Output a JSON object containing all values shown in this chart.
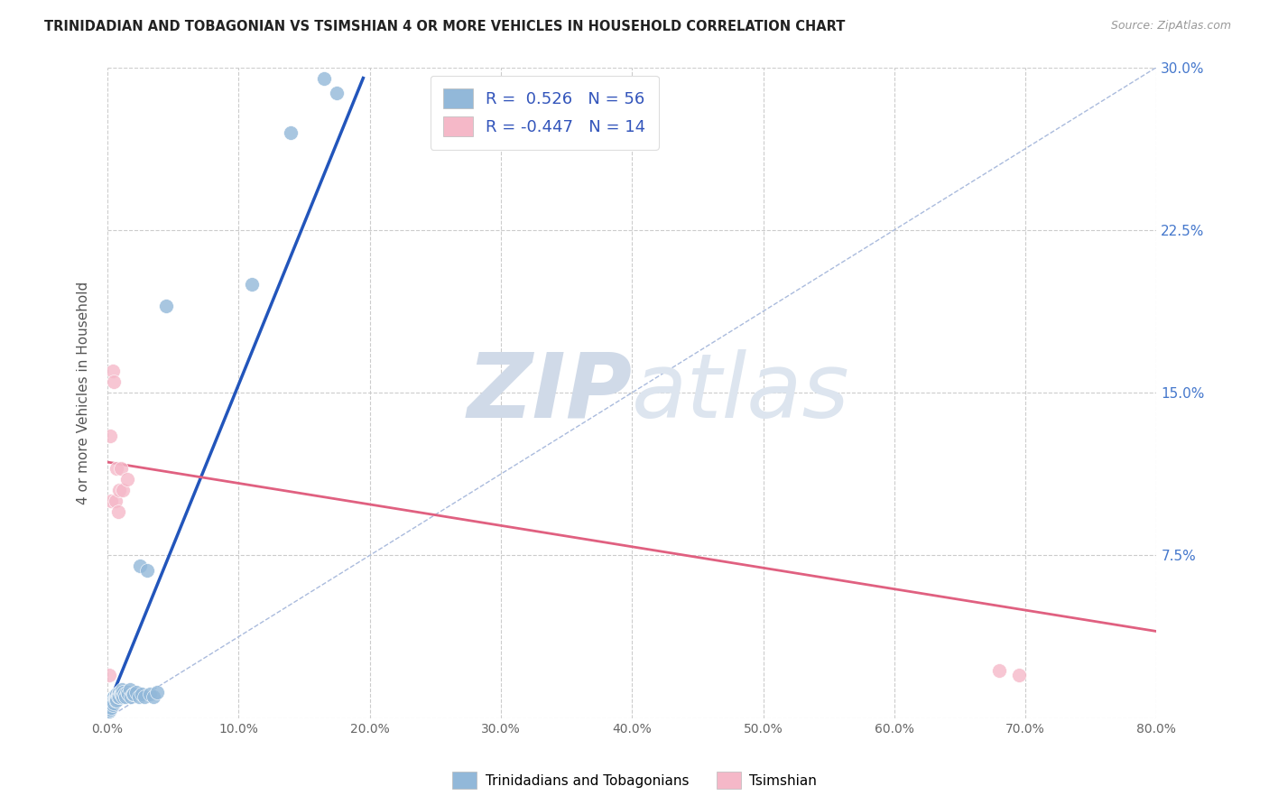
{
  "title": "TRINIDADIAN AND TOBAGONIAN VS TSIMSHIAN 4 OR MORE VEHICLES IN HOUSEHOLD CORRELATION CHART",
  "source": "Source: ZipAtlas.com",
  "ylabel": "4 or more Vehicles in Household",
  "xlim": [
    0.0,
    0.8
  ],
  "ylim": [
    0.0,
    0.3
  ],
  "xticks": [
    0.0,
    0.1,
    0.2,
    0.3,
    0.4,
    0.5,
    0.6,
    0.7,
    0.8
  ],
  "yticks": [
    0.0,
    0.075,
    0.15,
    0.225,
    0.3
  ],
  "xticklabels": [
    "0.0%",
    "10.0%",
    "20.0%",
    "30.0%",
    "40.0%",
    "50.0%",
    "60.0%",
    "70.0%",
    "80.0%"
  ],
  "yticklabels_right": [
    "",
    "7.5%",
    "15.0%",
    "22.5%",
    "30.0%"
  ],
  "blue_R": 0.526,
  "blue_N": 56,
  "pink_R": -0.447,
  "pink_N": 14,
  "blue_color": "#92b8d9",
  "pink_color": "#f5b8c8",
  "blue_line_color": "#2255bb",
  "pink_line_color": "#e06080",
  "watermark_zip": "ZIP",
  "watermark_atlas": "atlas",
  "legend_label_blue": "Trinidadians and Tobagonians",
  "legend_label_pink": "Tsimshian",
  "blue_scatter_x": [
    0.001,
    0.001,
    0.001,
    0.002,
    0.002,
    0.002,
    0.002,
    0.003,
    0.003,
    0.003,
    0.003,
    0.004,
    0.004,
    0.004,
    0.004,
    0.005,
    0.005,
    0.005,
    0.006,
    0.006,
    0.006,
    0.007,
    0.007,
    0.007,
    0.008,
    0.008,
    0.009,
    0.009,
    0.01,
    0.01,
    0.011,
    0.011,
    0.012,
    0.012,
    0.013,
    0.014,
    0.015,
    0.016,
    0.017,
    0.018,
    0.019,
    0.02,
    0.022,
    0.024,
    0.025,
    0.026,
    0.028,
    0.03,
    0.032,
    0.035,
    0.038,
    0.045,
    0.11,
    0.14,
    0.165,
    0.175
  ],
  "blue_scatter_y": [
    0.005,
    0.004,
    0.003,
    0.007,
    0.006,
    0.005,
    0.004,
    0.008,
    0.007,
    0.006,
    0.005,
    0.009,
    0.008,
    0.007,
    0.006,
    0.01,
    0.008,
    0.007,
    0.01,
    0.009,
    0.008,
    0.011,
    0.009,
    0.008,
    0.011,
    0.01,
    0.012,
    0.01,
    0.012,
    0.011,
    0.013,
    0.011,
    0.012,
    0.01,
    0.011,
    0.01,
    0.012,
    0.011,
    0.013,
    0.01,
    0.011,
    0.011,
    0.012,
    0.01,
    0.07,
    0.011,
    0.01,
    0.068,
    0.011,
    0.01,
    0.012,
    0.19,
    0.2,
    0.27,
    0.295,
    0.288
  ],
  "pink_scatter_x": [
    0.001,
    0.002,
    0.003,
    0.004,
    0.005,
    0.006,
    0.007,
    0.008,
    0.009,
    0.01,
    0.012,
    0.015,
    0.68,
    0.695
  ],
  "pink_scatter_y": [
    0.02,
    0.13,
    0.1,
    0.16,
    0.155,
    0.1,
    0.115,
    0.095,
    0.105,
    0.115,
    0.105,
    0.11,
    0.022,
    0.02
  ],
  "blue_trend_x0": 0.0,
  "blue_trend_y0": 0.005,
  "blue_trend_x1": 0.195,
  "blue_trend_y1": 0.295,
  "pink_trend_x0": 0.0,
  "pink_trend_y0": 0.118,
  "pink_trend_x1": 0.8,
  "pink_trend_y1": 0.04,
  "ref_line_x0": 0.0,
  "ref_line_y0": 0.0,
  "ref_line_x1": 0.8,
  "ref_line_y1": 0.3
}
